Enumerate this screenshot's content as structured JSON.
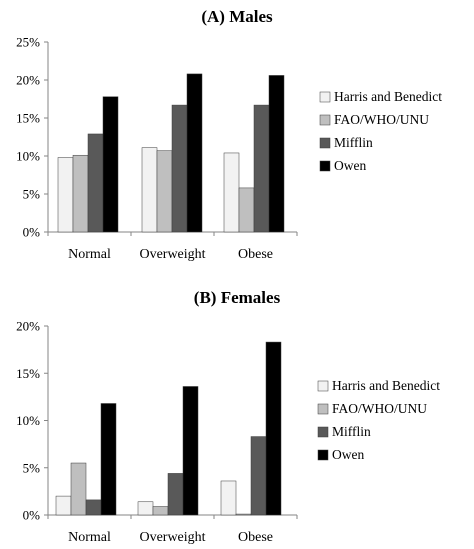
{
  "chart_data": [
    {
      "type": "bar",
      "title": "(A) Males",
      "categories": [
        "Normal",
        "Overweight",
        "Obese"
      ],
      "y_ticks": [
        "0%",
        "5%",
        "10%",
        "15%",
        "20%",
        "25%"
      ],
      "ylim": [
        0,
        25
      ],
      "series": [
        {
          "name": "Harris and Benedict",
          "values": [
            9.8,
            11.1,
            10.4
          ]
        },
        {
          "name": "FAO/WHO/UNU",
          "values": [
            10.1,
            10.7,
            5.8
          ]
        },
        {
          "name": "Mifflin",
          "values": [
            12.9,
            16.7,
            16.7
          ]
        },
        {
          "name": "Owen",
          "values": [
            17.8,
            20.8,
            20.6
          ]
        }
      ],
      "legend_position": "right",
      "grid": false
    },
    {
      "type": "bar",
      "title": "(B) Females",
      "categories": [
        "Normal",
        "Overweight",
        "Obese"
      ],
      "y_ticks": [
        "0%",
        "5%",
        "10%",
        "15%",
        "20%"
      ],
      "ylim": [
        0,
        20
      ],
      "series": [
        {
          "name": "Harris and Benedict",
          "values": [
            2.0,
            1.4,
            3.6
          ]
        },
        {
          "name": "FAO/WHO/UNU",
          "values": [
            5.5,
            0.9,
            0.1
          ]
        },
        {
          "name": "Mifflin",
          "values": [
            1.6,
            4.4,
            8.3
          ]
        },
        {
          "name": "Owen",
          "values": [
            11.8,
            13.6,
            18.3
          ]
        }
      ],
      "legend_position": "right",
      "grid": false
    }
  ],
  "colors": {
    "Harris and Benedict": "#f2f2f2",
    "FAO/WHO/UNU": "#bfbfbf",
    "Mifflin": "#595959",
    "Owen": "#000000",
    "axis": "#868686"
  }
}
